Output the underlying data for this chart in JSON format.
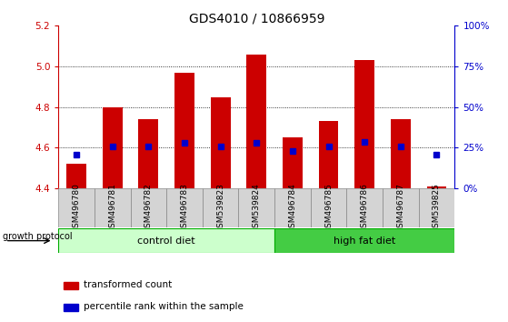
{
  "title": "GDS4010 / 10866959",
  "samples": [
    "GSM496780",
    "GSM496781",
    "GSM496782",
    "GSM496783",
    "GSM539823",
    "GSM539824",
    "GSM496784",
    "GSM496785",
    "GSM496786",
    "GSM496787",
    "GSM539825"
  ],
  "bar_values": [
    4.52,
    4.8,
    4.74,
    4.97,
    4.85,
    5.06,
    4.65,
    4.73,
    5.03,
    4.74,
    4.41
  ],
  "percentile_values": [
    4.565,
    4.605,
    4.605,
    4.625,
    4.605,
    4.625,
    4.585,
    4.605,
    4.63,
    4.605,
    4.565
  ],
  "ylim": [
    4.4,
    5.2
  ],
  "yticks_left": [
    4.4,
    4.6,
    4.8,
    5.0,
    5.2
  ],
  "yticks_right": [
    0,
    25,
    50,
    75,
    100
  ],
  "bar_color": "#cc0000",
  "percentile_color": "#0000cc",
  "bar_width": 0.55,
  "control_samples": 6,
  "high_fat_samples": 5,
  "control_label": "control diet",
  "high_fat_label": "high fat diet",
  "control_color": "#ccffcc",
  "high_fat_color": "#44cc44",
  "group_label": "growth protocol",
  "legend_bar_label": "transformed count",
  "legend_pct_label": "percentile rank within the sample",
  "left_axis_color": "#cc0000",
  "right_axis_color": "#0000cc",
  "title_fontsize": 10,
  "tick_fontsize": 7.5,
  "sample_fontsize": 6.5,
  "label_fontsize": 8,
  "grid_color": "black",
  "grid_style": ":",
  "grid_lw": 0.6,
  "box_color": "#d4d4d4",
  "box_edge_color": "#888888"
}
